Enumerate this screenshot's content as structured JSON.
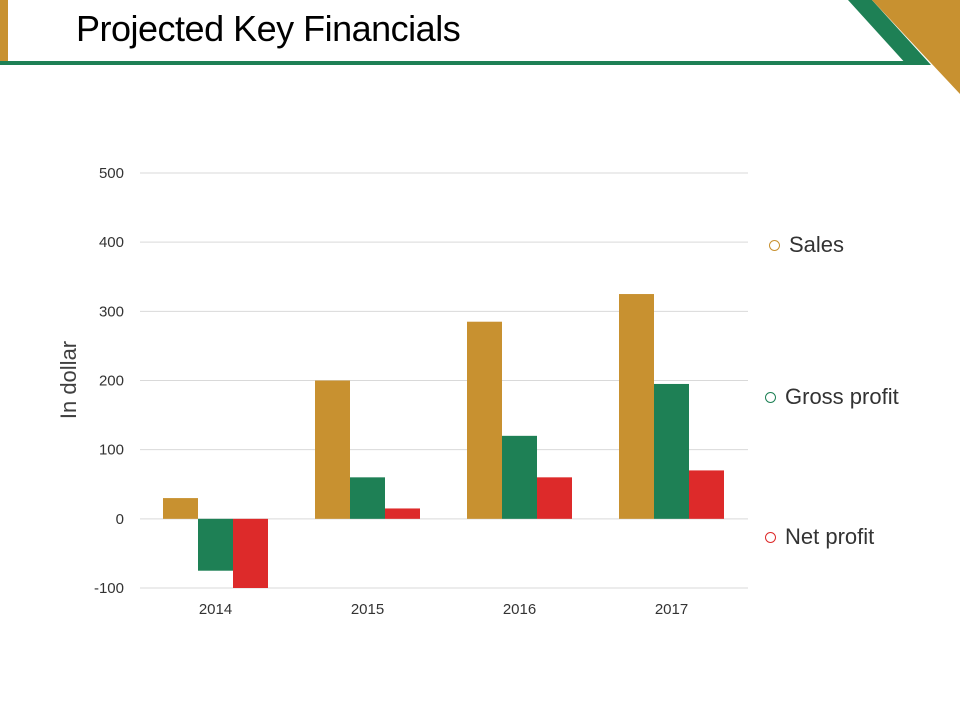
{
  "title": "Projected Key Financials",
  "colors": {
    "gold": "#c89130",
    "green": "#1e8055",
    "red": "#dd2a2a"
  },
  "chart_data": {
    "type": "bar",
    "title": "",
    "xlabel": "",
    "ylabel": "In dollar",
    "categories": [
      "2014",
      "2015",
      "2016",
      "2017"
    ],
    "ylim": [
      -100,
      500
    ],
    "yticks": [
      -100,
      0,
      100,
      200,
      300,
      400,
      500
    ],
    "grid": true,
    "legend_placement": "right",
    "series": [
      {
        "name": "Sales",
        "color": "#c89130",
        "values": [
          30,
          200,
          285,
          325
        ]
      },
      {
        "name": "Gross profit",
        "color": "#1e8055",
        "values": [
          -75,
          60,
          120,
          195
        ]
      },
      {
        "name": "Net profit",
        "color": "#dd2a2a",
        "values": [
          -100,
          15,
          60,
          70
        ]
      }
    ]
  }
}
